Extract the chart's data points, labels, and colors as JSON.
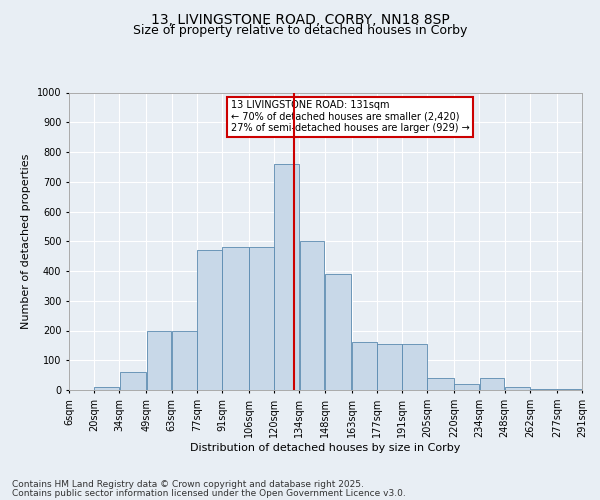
{
  "title1": "13, LIVINGSTONE ROAD, CORBY, NN18 8SP",
  "title2": "Size of property relative to detached houses in Corby",
  "xlabel": "Distribution of detached houses by size in Corby",
  "ylabel": "Number of detached properties",
  "footnote1": "Contains HM Land Registry data © Crown copyright and database right 2025.",
  "footnote2": "Contains public sector information licensed under the Open Government Licence v3.0.",
  "annotation_line1": "13 LIVINGSTONE ROAD: 131sqm",
  "annotation_line2": "← 70% of detached houses are smaller (2,420)",
  "annotation_line3": "27% of semi-detached houses are larger (929) →",
  "property_size": 131,
  "bar_left_edges": [
    6,
    20,
    34,
    49,
    63,
    77,
    91,
    106,
    120,
    134,
    148,
    163,
    177,
    191,
    205,
    220,
    234,
    248,
    262,
    277
  ],
  "bar_widths": [
    14,
    14,
    15,
    14,
    14,
    14,
    15,
    14,
    14,
    14,
    15,
    14,
    14,
    14,
    15,
    14,
    14,
    14,
    15,
    14
  ],
  "bar_heights": [
    0,
    10,
    60,
    200,
    200,
    470,
    480,
    480,
    760,
    500,
    390,
    160,
    155,
    155,
    40,
    20,
    40,
    10,
    5,
    2
  ],
  "tick_labels": [
    "6sqm",
    "20sqm",
    "34sqm",
    "49sqm",
    "63sqm",
    "77sqm",
    "91sqm",
    "106sqm",
    "120sqm",
    "134sqm",
    "148sqm",
    "163sqm",
    "177sqm",
    "191sqm",
    "205sqm",
    "220sqm",
    "234sqm",
    "248sqm",
    "262sqm",
    "277sqm",
    "291sqm"
  ],
  "tick_positions": [
    6,
    20,
    34,
    49,
    63,
    77,
    91,
    106,
    120,
    134,
    148,
    163,
    177,
    191,
    205,
    220,
    234,
    248,
    262,
    277,
    291
  ],
  "bar_color": "#c8d8e8",
  "bar_edge_color": "#5a8ab0",
  "vline_color": "#cc0000",
  "vline_x": 131,
  "annotation_box_color": "#cc0000",
  "ylim": [
    0,
    1000
  ],
  "yticks": [
    0,
    100,
    200,
    300,
    400,
    500,
    600,
    700,
    800,
    900,
    1000
  ],
  "bg_color": "#e8eef4",
  "plot_bg_color": "#e8eef4",
  "grid_color": "#ffffff",
  "title_fontsize": 10,
  "subtitle_fontsize": 9,
  "axis_label_fontsize": 8,
  "tick_fontsize": 7,
  "footnote_fontsize": 6.5
}
